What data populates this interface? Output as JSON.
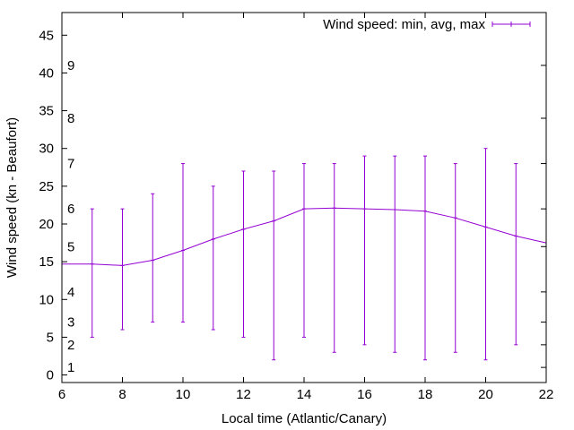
{
  "chart_data": {
    "type": "line",
    "title": "",
    "xlabel": "Local time (Atlantic/Canary)",
    "ylabel": "Wind speed (kn - Beaufort)",
    "xlim": [
      6,
      22
    ],
    "ylim": [
      -1,
      48
    ],
    "x_ticks": [
      6,
      8,
      10,
      12,
      14,
      16,
      18,
      20,
      22
    ],
    "y_ticks": [
      0,
      5,
      10,
      15,
      20,
      25,
      30,
      35,
      40,
      45
    ],
    "grid": false,
    "legend": {
      "position": "top-right",
      "entries": [
        "Wind speed: min, avg, max"
      ]
    },
    "series_color": "#9400d3",
    "beaufort_scale": [
      {
        "label": "1",
        "value": 1
      },
      {
        "label": "2",
        "value": 4
      },
      {
        "label": "3",
        "value": 7
      },
      {
        "label": "4",
        "value": 11
      },
      {
        "label": "5",
        "value": 17
      },
      {
        "label": "6",
        "value": 22
      },
      {
        "label": "7",
        "value": 28
      },
      {
        "label": "8",
        "value": 34
      },
      {
        "label": "9",
        "value": 41
      }
    ],
    "series": [
      {
        "name": "Wind speed: min, avg, max",
        "x": [
          6,
          7,
          8,
          9,
          10,
          11,
          12,
          13,
          14,
          15,
          16,
          17,
          18,
          19,
          20,
          21,
          22
        ],
        "avg": [
          14.7,
          14.7,
          14.5,
          15.2,
          16.5,
          18.0,
          19.3,
          20.4,
          22.0,
          22.1,
          22.0,
          21.9,
          21.7,
          20.8,
          19.6,
          18.4,
          17.5
        ],
        "min": [
          null,
          5,
          6,
          7,
          7,
          6,
          5,
          2,
          5,
          3,
          4,
          3,
          2,
          3,
          2,
          4,
          null
        ],
        "max": [
          null,
          22,
          22,
          24,
          28,
          25,
          27,
          27,
          28,
          28,
          29,
          29,
          29,
          28,
          30,
          28,
          null
        ]
      }
    ]
  }
}
